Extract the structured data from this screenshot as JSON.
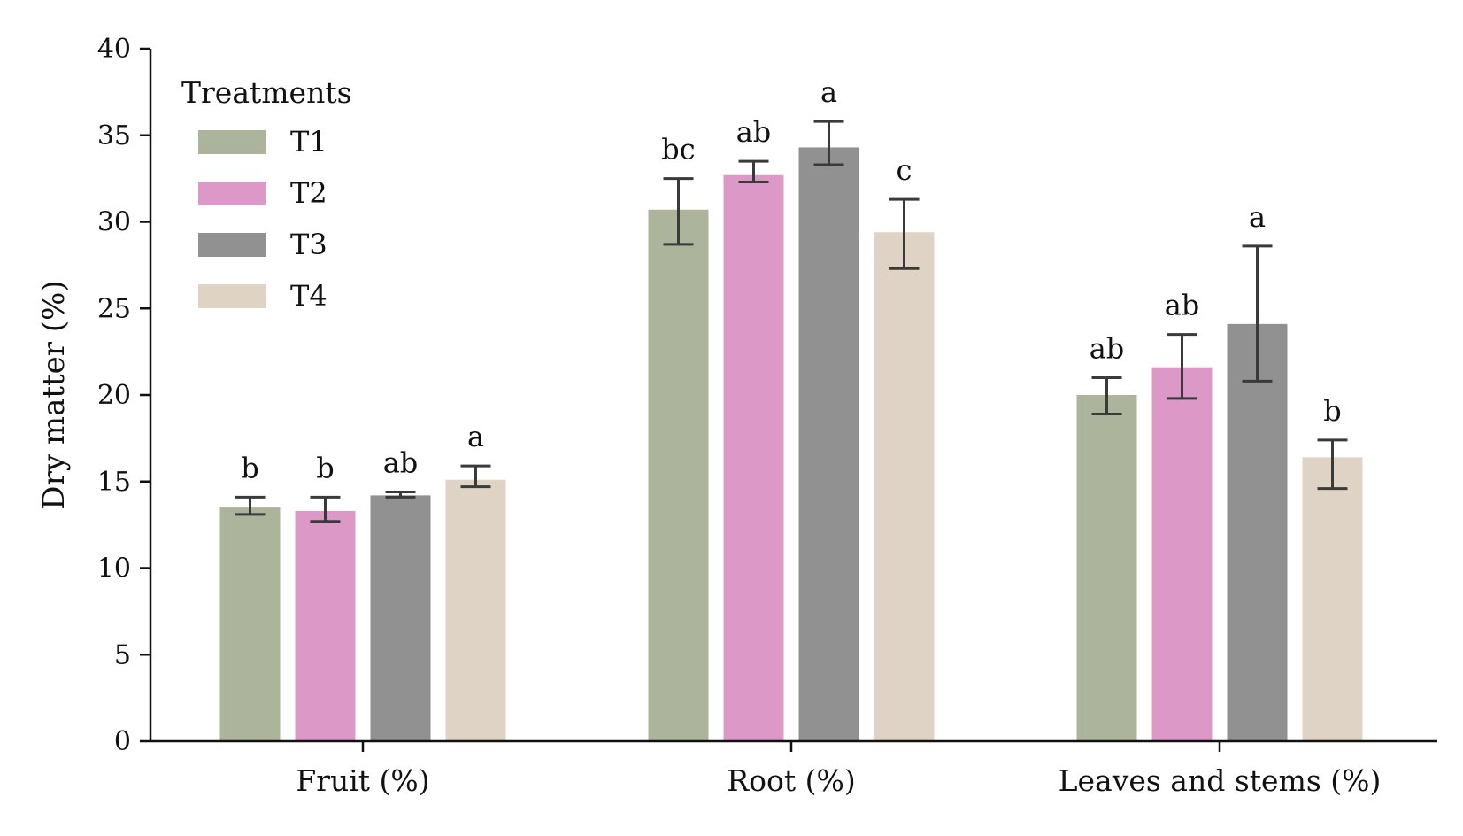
{
  "chart_data": {
    "type": "bar",
    "title": "",
    "xlabel": "",
    "ylabel": "Dry matter (%)",
    "ylim": [
      0,
      40
    ],
    "yticks": [
      0,
      5,
      10,
      15,
      20,
      25,
      30,
      35,
      40
    ],
    "grid": false,
    "categories": [
      "Fruit (%)",
      "Root (%)",
      "Leaves and stems (%)"
    ],
    "legend": {
      "title": "Treatments",
      "placement": "top-left"
    },
    "series": [
      {
        "name": "T1",
        "color": "#acb59b",
        "values": [
          13.5,
          30.7,
          20.0
        ],
        "err_low": [
          13.1,
          28.7,
          18.9
        ],
        "err_high": [
          14.1,
          32.5,
          21.0
        ],
        "labels": [
          "b",
          "bc",
          "ab"
        ]
      },
      {
        "name": "T2",
        "color": "#dc98c6",
        "values": [
          13.3,
          32.7,
          21.6
        ],
        "err_low": [
          12.7,
          32.3,
          19.8
        ],
        "err_high": [
          14.1,
          33.5,
          23.5
        ],
        "labels": [
          "b",
          "ab",
          "ab"
        ]
      },
      {
        "name": "T3",
        "color": "#919191",
        "values": [
          14.2,
          34.3,
          24.1
        ],
        "err_low": [
          14.1,
          33.3,
          20.8
        ],
        "err_high": [
          14.4,
          35.8,
          28.6
        ],
        "labels": [
          "ab",
          "a",
          "a"
        ]
      },
      {
        "name": "T4",
        "color": "#ded3c4",
        "values": [
          15.1,
          29.4,
          16.4
        ],
        "err_low": [
          14.7,
          27.3,
          14.6
        ],
        "err_high": [
          15.9,
          31.3,
          17.4
        ],
        "labels": [
          "a",
          "c",
          "b"
        ]
      }
    ]
  }
}
